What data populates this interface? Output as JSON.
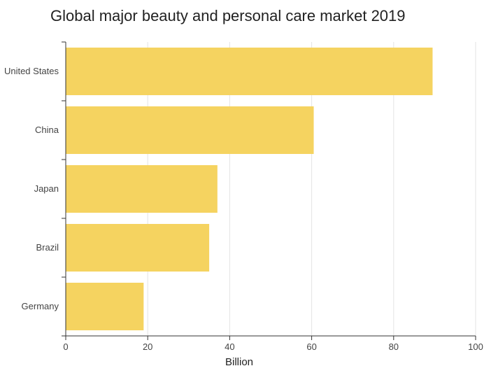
{
  "chart_data": {
    "type": "bar",
    "orientation": "horizontal",
    "title": "Global major beauty and personal care market 2019",
    "xlabel": "Billion",
    "ylabel": "",
    "categories": [
      "United States",
      "China",
      "Japan",
      "Brazil",
      "Germany"
    ],
    "values": [
      89.5,
      60.5,
      37,
      35,
      19
    ],
    "xlim": [
      0,
      100
    ],
    "xticks": [
      0,
      20,
      40,
      60,
      80,
      100
    ],
    "grid": "vertical",
    "legend": "none",
    "bar_color": "#F5D360"
  }
}
